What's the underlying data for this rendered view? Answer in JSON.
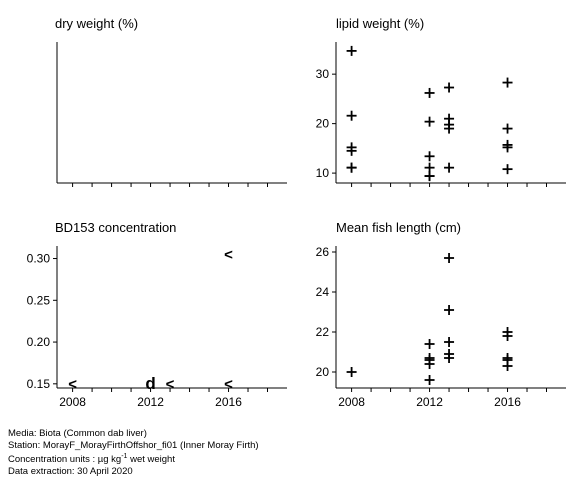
{
  "chart_data": [
    {
      "type": "scatter",
      "title": "dry weight (%)",
      "x": [],
      "y": [],
      "x_axis": "shared"
    },
    {
      "type": "scatter",
      "title": "lipid weight (%)",
      "ylim": [
        8,
        36.5
      ],
      "yticks": [
        10,
        20,
        30
      ],
      "marker": "+",
      "x": [
        2008,
        2008,
        2008,
        2008,
        2008,
        2008,
        2012,
        2012,
        2012,
        2012,
        2012,
        2012,
        2013,
        2013,
        2013,
        2013,
        2013,
        2016,
        2016,
        2016,
        2016,
        2016
      ],
      "y": [
        34.7,
        21.6,
        15.2,
        14.5,
        11.1,
        11.1,
        26.2,
        20.4,
        13.4,
        11.1,
        9.4,
        9.4,
        27.3,
        21.0,
        19.8,
        19.0,
        11.1,
        28.3,
        19.0,
        15.7,
        15.2,
        10.8
      ]
    },
    {
      "type": "scatter",
      "title": "BD153 concentration",
      "ylim": [
        0.145,
        0.315
      ],
      "yticks": [
        0.15,
        0.2,
        0.25,
        0.3
      ],
      "ytick_labels": [
        "0.15",
        "0.20",
        "0.25",
        "0.30"
      ],
      "points": [
        {
          "x": 2008,
          "y": 0.15,
          "symbol": "<"
        },
        {
          "x": 2012,
          "y": 0.15,
          "symbol": "d"
        },
        {
          "x": 2013,
          "y": 0.15,
          "symbol": "<"
        },
        {
          "x": 2016,
          "y": 0.15,
          "symbol": "<"
        },
        {
          "x": 2016,
          "y": 0.305,
          "symbol": "<"
        }
      ]
    },
    {
      "type": "scatter",
      "title": "Mean fish length (cm)",
      "ylim": [
        19.2,
        26.3
      ],
      "yticks": [
        20,
        22,
        24,
        26
      ],
      "marker": "+",
      "x": [
        2008,
        2012,
        2012,
        2012,
        2012,
        2012,
        2013,
        2013,
        2013,
        2013,
        2013,
        2016,
        2016,
        2016,
        2016,
        2016
      ],
      "y": [
        20.0,
        21.4,
        20.7,
        20.6,
        20.4,
        19.6,
        25.7,
        23.1,
        21.5,
        20.9,
        20.7,
        22.0,
        21.8,
        20.7,
        20.6,
        20.3
      ]
    }
  ],
  "x_axis": {
    "xlim": [
      2007.2,
      2019
    ],
    "minor_ticks": [
      2008,
      2009,
      2010,
      2011,
      2012,
      2013,
      2014,
      2015,
      2016,
      2017,
      2018
    ],
    "labels": [
      "2008",
      "2012",
      "2016"
    ]
  },
  "caption": {
    "media": "Media: Biota (Common dab liver)",
    "station": "Station: MorayF_MorayFirthOffshor_fi01 (Inner Moray Firth)",
    "units_prefix": "Concentration units : ",
    "units_mu": "µg kg",
    "units_exp": "-1",
    "units_suffix": " wet weight",
    "extraction": "Data extraction: 30 April 2020"
  }
}
